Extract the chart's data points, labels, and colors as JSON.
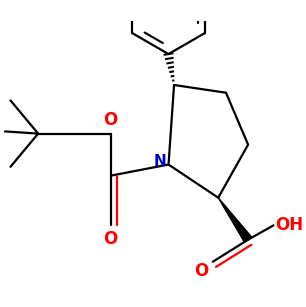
{
  "background_color": "#ffffff",
  "bond_color": "#000000",
  "N_color": "#0000cc",
  "O_color": "#ff0000",
  "linewidth": 1.6,
  "figsize": [
    3.06,
    3.07
  ],
  "dpi": 100,
  "xlim": [
    -1.5,
    1.1
  ],
  "ylim": [
    -1.1,
    1.3
  ]
}
